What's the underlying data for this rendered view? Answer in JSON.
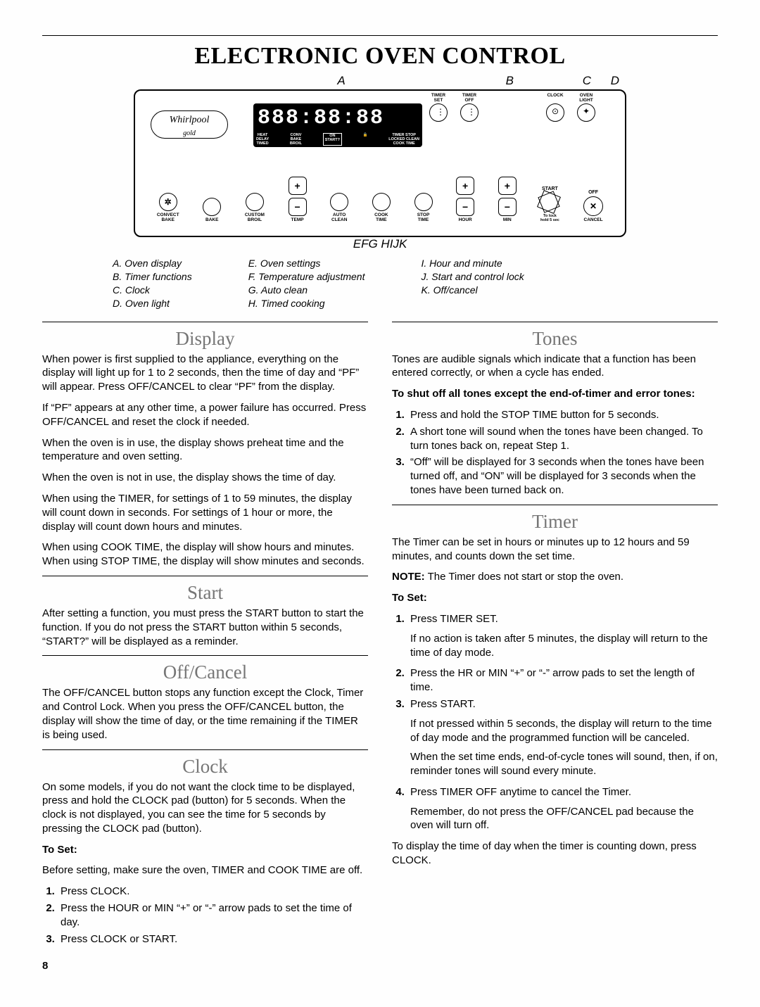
{
  "title": "ELECTRONIC OVEN CONTROL",
  "pageNumber": "8",
  "diagram": {
    "topLetters": [
      "A",
      "B",
      "C",
      "D"
    ],
    "botLetters": {
      "E": "75",
      "F": "172",
      "G": "248",
      "H": "340",
      "I": "438",
      "J": "490",
      "K": "600"
    },
    "brand": "Whirlpool",
    "brandSub": "gold",
    "lcdDigits": "888:88:88",
    "lcdRow": [
      "HEAT\nDELAY\nTIMED",
      "CONV\nBAKE\nBROIL",
      "ON\nSTART?",
      "",
      "TIMER STOP\nLOCKED CLEAN\nCOOK TIME"
    ],
    "topButtons": [
      {
        "label": "TIMER\nSET",
        "glyph": "⋮"
      },
      {
        "label": "TIMER\nOFF",
        "glyph": "⋮"
      },
      {
        "label": "CLOCK",
        "glyph": "⊙"
      },
      {
        "label": "OVEN\nLIGHT",
        "glyph": "✦"
      }
    ],
    "lowLabels": {
      "convect": "CONVECT\nBAKE",
      "bake": "BAKE",
      "custom": "CUSTOM\nBROIL",
      "temp": "TEMP",
      "auto": "AUTO\nCLEAN",
      "cook": "COOK\nTIME",
      "stop": "STOP\nTIME",
      "hour": "HOUR",
      "min": "MIN",
      "start": "START",
      "lock": "To lock\nhold 5 sec",
      "off": "OFF",
      "cancel": "CANCEL"
    }
  },
  "legend": {
    "col1": [
      "A. Oven display",
      "B. Timer functions",
      "C. Clock",
      "D. Oven light"
    ],
    "col2": [
      "E. Oven settings",
      "F. Temperature adjustment",
      "G. Auto clean",
      "H. Timed cooking"
    ],
    "col3": [
      "I. Hour and minute",
      "J. Start and control lock",
      "K. Off/cancel"
    ]
  },
  "left": {
    "display": {
      "h": "Display",
      "p": [
        "When power is first supplied to the appliance, everything on the display will light up for 1 to 2 seconds, then the time of day and “PF” will appear. Press OFF/CANCEL to clear “PF” from the display.",
        "If “PF” appears at any other time, a power failure has occurred. Press OFF/CANCEL and reset the clock if needed.",
        "When the oven is in use, the display shows preheat time and the temperature and oven setting.",
        "When the oven is not in use, the display shows the time of day.",
        "When using the TIMER, for settings of 1 to 59 minutes, the display will count down in seconds. For settings of 1 hour or more, the display will count down hours and minutes.",
        "When using COOK TIME, the display will show hours and minutes. When using STOP TIME, the display will show minutes and seconds."
      ]
    },
    "start": {
      "h": "Start",
      "p": [
        "After setting a function, you must press the START button to start the function. If you do not press the START button within 5 seconds, “START?” will be displayed as a reminder."
      ]
    },
    "offcancel": {
      "h": "Off/Cancel",
      "p": [
        "The OFF/CANCEL button stops any function except the Clock, Timer and Control Lock. When you press the OFF/CANCEL button, the display will show the time of day, or the time remaining if the TIMER is being used."
      ]
    },
    "clock": {
      "h": "Clock",
      "p1": "On some models, if you do not want the clock time to be displayed, press and hold the CLOCK pad (button) for 5 seconds. When the clock is not displayed, you can see the time for 5 seconds by pressing the CLOCK pad (button).",
      "toset": "To Set:",
      "p2": "Before setting, make sure the oven, TIMER and COOK TIME are off.",
      "ol": [
        "Press CLOCK.",
        "Press the HOUR or MIN “+” or “-” arrow pads to set the time of day.",
        "Press CLOCK or START."
      ]
    }
  },
  "right": {
    "tones": {
      "h": "Tones",
      "p1": "Tones are audible signals which indicate that a function has been entered correctly, or when a cycle has ended.",
      "bold": "To shut off all tones except the end-of-timer and error tones:",
      "ol": [
        "Press and hold the STOP TIME button for 5 seconds.",
        "A short tone will sound when the tones have been changed. To turn tones back on, repeat Step 1.",
        "“Off” will be displayed for 3 seconds when the tones have been turned off, and “ON” will be displayed for 3 seconds when the tones have been turned back on."
      ]
    },
    "timer": {
      "h": "Timer",
      "p1": "The Timer can be set in hours or minutes up to 12 hours and 59 minutes, and counts down the set time.",
      "note": "NOTE: The Timer does not start or stop the oven.",
      "noteLabel": "NOTE:",
      "toset": "To Set:",
      "li1": "Press TIMER SET.",
      "li1p": "If no action is taken after 5 minutes, the display will return to the time of day mode.",
      "li2": "Press the HR or MIN “+” or “-” arrow pads to set the length of time.",
      "li3": "Press START.",
      "li3p1": "If not pressed within 5 seconds, the display will return to the time of day mode and the programmed function will be canceled.",
      "li3p2": "When the set time ends, end-of-cycle tones will sound, then, if on, reminder tones will sound every minute.",
      "li4": "Press TIMER OFF anytime to cancel the Timer.",
      "li4p": "Remember, do not press the OFF/CANCEL pad because the oven will turn off.",
      "pEnd": "To display the time of day when the timer is counting down, press CLOCK."
    }
  }
}
